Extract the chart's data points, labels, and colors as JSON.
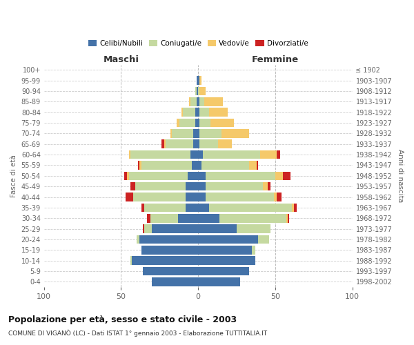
{
  "age_groups": [
    "100+",
    "95-99",
    "90-94",
    "85-89",
    "80-84",
    "75-79",
    "70-74",
    "65-69",
    "60-64",
    "55-59",
    "50-54",
    "45-49",
    "40-44",
    "35-39",
    "30-34",
    "25-29",
    "20-24",
    "15-19",
    "10-14",
    "5-9",
    "0-4"
  ],
  "birth_years": [
    "≤ 1902",
    "1903-1907",
    "1908-1912",
    "1913-1917",
    "1918-1922",
    "1923-1927",
    "1928-1932",
    "1933-1937",
    "1938-1942",
    "1943-1947",
    "1948-1952",
    "1953-1957",
    "1958-1962",
    "1963-1967",
    "1968-1972",
    "1973-1977",
    "1978-1982",
    "1983-1987",
    "1988-1992",
    "1993-1997",
    "1998-2002"
  ],
  "male": {
    "celibe": [
      0,
      1,
      1,
      1,
      2,
      2,
      3,
      3,
      5,
      4,
      7,
      8,
      8,
      8,
      13,
      30,
      38,
      37,
      43,
      36,
      30
    ],
    "coniugato": [
      0,
      0,
      1,
      4,
      8,
      10,
      14,
      18,
      39,
      33,
      38,
      33,
      34,
      27,
      18,
      5,
      2,
      0,
      1,
      0,
      0
    ],
    "vedovo": [
      0,
      0,
      0,
      1,
      1,
      2,
      1,
      1,
      1,
      1,
      1,
      0,
      0,
      0,
      0,
      0,
      0,
      0,
      0,
      0,
      0
    ],
    "divorziato": [
      0,
      0,
      0,
      0,
      0,
      0,
      0,
      2,
      0,
      1,
      2,
      3,
      5,
      2,
      2,
      1,
      0,
      0,
      0,
      0,
      0
    ]
  },
  "female": {
    "nubile": [
      0,
      1,
      0,
      1,
      1,
      1,
      1,
      1,
      3,
      2,
      5,
      5,
      5,
      7,
      14,
      25,
      39,
      35,
      37,
      33,
      27
    ],
    "coniugata": [
      0,
      0,
      1,
      3,
      6,
      7,
      14,
      12,
      37,
      31,
      45,
      37,
      44,
      54,
      43,
      22,
      7,
      2,
      0,
      0,
      0
    ],
    "vedova": [
      0,
      1,
      4,
      12,
      12,
      15,
      18,
      9,
      11,
      5,
      5,
      3,
      2,
      1,
      1,
      0,
      0,
      0,
      0,
      0,
      0
    ],
    "divorziata": [
      0,
      0,
      0,
      0,
      0,
      0,
      0,
      0,
      2,
      1,
      5,
      2,
      3,
      2,
      1,
      0,
      0,
      0,
      0,
      0,
      0
    ]
  },
  "colors": {
    "celibe": "#4472a8",
    "coniugato": "#c5d9a0",
    "vedovo": "#f5c96a",
    "divorziato": "#cc2222"
  },
  "title": "Popolazione per età, sesso e stato civile - 2003",
  "subtitle": "COMUNE DI VIGANÒ (LC) - Dati ISTAT 1° gennaio 2003 - Elaborazione TUTTITALIA.IT",
  "xlabel_left": "Maschi",
  "xlabel_right": "Femmine",
  "ylabel_left": "Fasce di età",
  "ylabel_right": "Anni di nascita",
  "xlim": 100,
  "legend_labels": [
    "Celibi/Nubili",
    "Coniugati/e",
    "Vedovi/e",
    "Divorziati/e"
  ],
  "background_color": "#ffffff",
  "grid_color": "#cccccc"
}
